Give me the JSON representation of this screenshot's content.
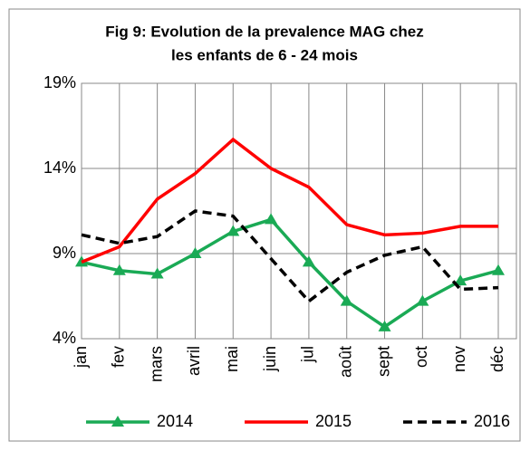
{
  "chart_data": {
    "type": "line",
    "title": "Fig 9: Evolution de la prevalence MAG chez les enfants de 6 - 24 mois",
    "title_lines": [
      "Fig 9: Evolution de la prevalence MAG chez",
      "les enfants de 6 - 24 mois"
    ],
    "categories": [
      "jan",
      "fev",
      "mars",
      "avril",
      "mai",
      "juin",
      "jul",
      "août",
      "sept",
      "oct",
      "nov",
      "déc"
    ],
    "series": [
      {
        "name": "2014",
        "color": "#1aaa55",
        "dash": "solid",
        "marker": "triangle",
        "values": [
          8.5,
          8.0,
          7.8,
          9.0,
          10.3,
          11.0,
          8.5,
          6.2,
          4.7,
          6.2,
          7.4,
          8.0
        ]
      },
      {
        "name": "2015",
        "color": "#ff0000",
        "dash": "solid",
        "marker": "none",
        "values": [
          8.5,
          9.4,
          12.2,
          13.7,
          15.7,
          14.0,
          12.9,
          10.7,
          10.1,
          10.2,
          10.6,
          10.6
        ]
      },
      {
        "name": "2016",
        "color": "#000000",
        "dash": "dashed",
        "marker": "none",
        "values": [
          10.1,
          9.6,
          10.0,
          11.5,
          11.2,
          8.7,
          6.2,
          7.9,
          8.9,
          9.4,
          6.9,
          7.0
        ]
      }
    ],
    "ylim": [
      4,
      19
    ],
    "yticks": [
      {
        "value": 4,
        "label": "4%"
      },
      {
        "value": 9,
        "label": "9%"
      },
      {
        "value": 14,
        "label": "14%"
      },
      {
        "value": 19,
        "label": "19%"
      }
    ],
    "grid": true,
    "legend": "bottom"
  }
}
